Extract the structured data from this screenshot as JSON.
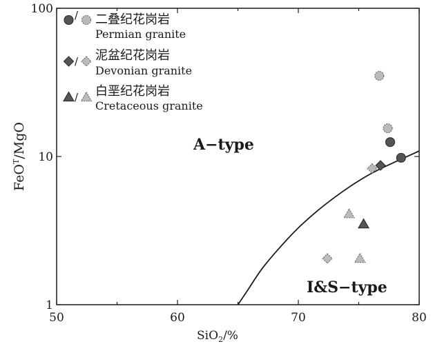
{
  "chart_data": {
    "type": "scatter",
    "xlabel": "SiO2/%",
    "xlabel_main": "SiO",
    "xlabel_sub": "2",
    "xlabel_tail": "/%",
    "ylabel": "FeOT/MgO",
    "ylabel_main": "FeO",
    "ylabel_sup": "T",
    "ylabel_tail": "/MgO",
    "xlim": [
      50,
      80
    ],
    "ylim": [
      1,
      100
    ],
    "yscale": "log",
    "x_ticks": [
      "50",
      "60",
      "70",
      "80"
    ],
    "y_ticks": [
      "1",
      "10",
      "100"
    ],
    "x_tick_values": [
      50,
      60,
      70,
      80
    ],
    "y_tick_values": [
      1,
      10,
      100
    ],
    "legend": [
      {
        "cn": "二叠纪花岗岩",
        "en": "Permian granite",
        "marker": "circle"
      },
      {
        "cn": "泥盆纪花岗岩",
        "en": "Devonian granite",
        "marker": "diamond"
      },
      {
        "cn": "白垩纪花岗岩",
        "en": "Cretaceous granite",
        "marker": "triangle"
      }
    ],
    "legend_separator": "/",
    "legend_position": "top-left",
    "region_labels": {
      "a_type": "A−type",
      "is_type": "I&S−type"
    },
    "series": [
      {
        "marker": "circle",
        "fill": "dark",
        "points": [
          [
            77.6,
            12.5
          ],
          [
            78.5,
            9.8
          ]
        ]
      },
      {
        "marker": "circle",
        "fill": "light",
        "points": [
          [
            76.7,
            35
          ],
          [
            77.4,
            15.5
          ]
        ]
      },
      {
        "marker": "diamond",
        "fill": "dark",
        "points": [
          [
            76.8,
            8.7
          ]
        ]
      },
      {
        "marker": "diamond",
        "fill": "light",
        "points": [
          [
            76.1,
            8.3
          ],
          [
            72.4,
            2.05
          ]
        ]
      },
      {
        "marker": "triangle",
        "fill": "dark",
        "points": [
          [
            75.4,
            3.5
          ]
        ]
      },
      {
        "marker": "triangle",
        "fill": "light",
        "points": [
          [
            74.2,
            4.1
          ],
          [
            75.1,
            2.05
          ]
        ]
      }
    ],
    "boundary_curve": [
      [
        65.0,
        1.0
      ],
      [
        65.8,
        1.25
      ],
      [
        67.0,
        1.75
      ],
      [
        68.5,
        2.45
      ],
      [
        70.0,
        3.3
      ],
      [
        71.5,
        4.25
      ],
      [
        73.0,
        5.3
      ],
      [
        74.5,
        6.45
      ],
      [
        76.0,
        7.65
      ],
      [
        77.5,
        8.8
      ],
      [
        79.0,
        10.0
      ],
      [
        80.0,
        10.9
      ]
    ],
    "colors": {
      "dark": "#555555",
      "light": "#bbbbbb",
      "axis": "#1a1a1a"
    }
  }
}
